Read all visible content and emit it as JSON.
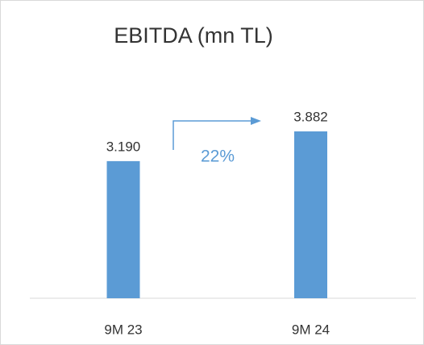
{
  "chart_data": {
    "type": "bar",
    "title": "EBITDA (mn TL)",
    "categories": [
      "9M 23",
      "9M 24"
    ],
    "values": [
      3190,
      3882
    ],
    "value_labels": [
      "3.190",
      "3.882"
    ],
    "color": "#5b9bd5",
    "annotation": "22%"
  }
}
